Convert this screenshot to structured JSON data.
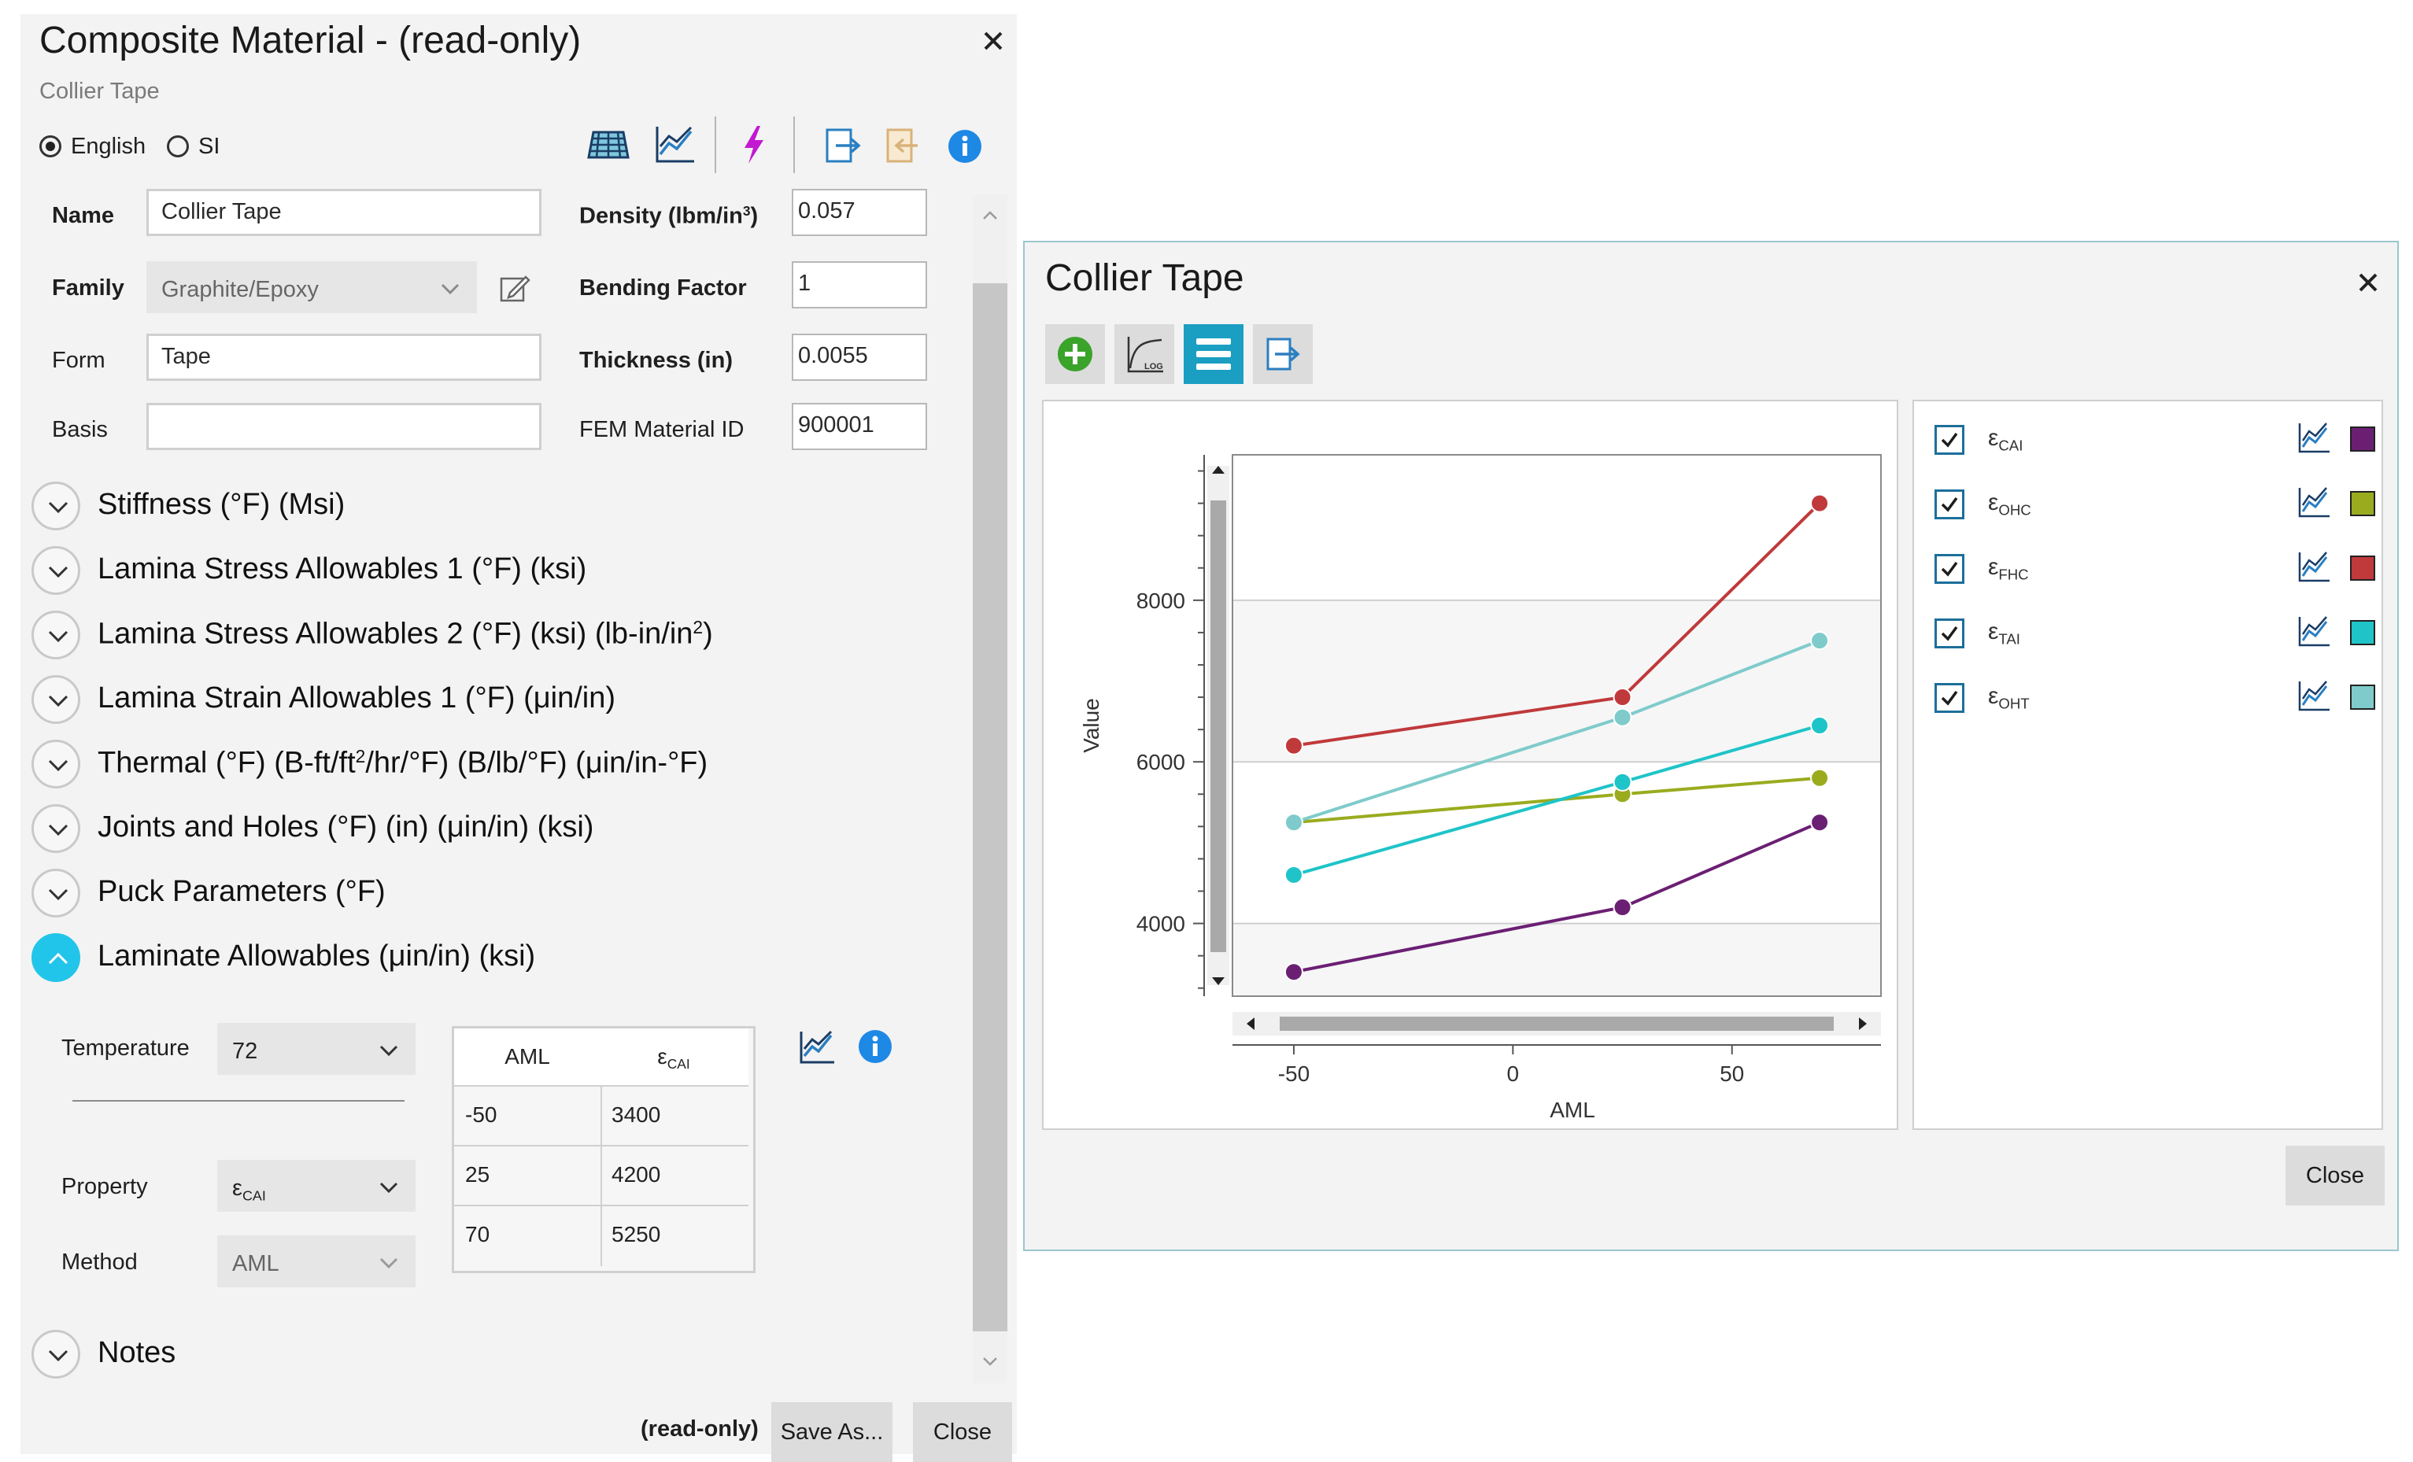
{
  "main_dialog": {
    "title": "Composite Material - (read-only)",
    "subtitle": "Collier Tape",
    "units": {
      "english": "English",
      "si": "SI",
      "selected": "english"
    },
    "fields": {
      "name_label": "Name",
      "name_value": "Collier Tape",
      "family_label": "Family",
      "family_value": "Graphite/Epoxy",
      "form_label": "Form",
      "form_value": "Tape",
      "basis_label": "Basis",
      "basis_value": "",
      "density_label_pre": "Density (lbm/in",
      "density_label_sup": "3",
      "density_label_post": ")",
      "density_value": "0.057",
      "bending_label": "Bending Factor",
      "bending_value": "1",
      "thickness_label": "Thickness (in)",
      "thickness_value": "0.0055",
      "fem_label": "FEM Material ID",
      "fem_value": "900001"
    },
    "sections": [
      {
        "label": "Stiffness (°F) (Msi)"
      },
      {
        "label": "Lamina Stress Allowables 1 (°F) (ksi)"
      },
      {
        "label_pre": "Lamina Stress Allowables 2 (°F) (ksi) (lb-in/in",
        "label_sup": "2",
        "label_post": ")"
      },
      {
        "label": "Lamina Strain Allowables 1 (°F) (μin/in)"
      },
      {
        "label_pre": "Thermal (°F) (B-ft/ft",
        "label_sup": "2",
        "label_post": "/hr/°F) (B/lb/°F) (μin/in-°F)"
      },
      {
        "label": "Joints and Holes (°F) (in) (μin/in) (ksi)"
      },
      {
        "label": "Puck Parameters (°F)"
      },
      {
        "label": "Laminate Allowables (μin/in) (ksi)"
      }
    ],
    "laminate": {
      "temperature_label": "Temperature",
      "temperature_value": "72",
      "property_label": "Property",
      "property_value_main": "ε",
      "property_value_sub": "CAI",
      "method_label": "Method",
      "method_value": "AML",
      "table": {
        "col1": "AML",
        "col2_main": "ε",
        "col2_sub": "CAI",
        "rows": [
          [
            "-50",
            "3400"
          ],
          [
            "25",
            "4200"
          ],
          [
            "70",
            "5250"
          ]
        ]
      }
    },
    "notes_label": "Notes",
    "footer": {
      "status": "(read-only)",
      "save_as": "Save As...",
      "close": "Close"
    }
  },
  "chart_window": {
    "title": "Collier Tape",
    "close_button": "Close",
    "legend": [
      {
        "main": "ε",
        "sub": "CAI",
        "color": "#6b1f73",
        "checked": true
      },
      {
        "main": "ε",
        "sub": "OHC",
        "color": "#9aab1e",
        "checked": true
      },
      {
        "main": "ε",
        "sub": "FHC",
        "color": "#c0393b",
        "checked": true
      },
      {
        "main": "ε",
        "sub": "TAI",
        "color": "#1ec4c8",
        "checked": true
      },
      {
        "main": "ε",
        "sub": "OHT",
        "color": "#7fcbcb",
        "checked": true
      }
    ]
  },
  "chart_data": {
    "type": "line",
    "xlabel": "AML",
    "ylabel": "Value",
    "x_ticks": [
      -50,
      0,
      50
    ],
    "y_ticks": [
      4000,
      6000,
      8000
    ],
    "xlim": [
      -64,
      84
    ],
    "ylim": [
      3100,
      9800
    ],
    "x": [
      -50,
      25,
      70
    ],
    "series": [
      {
        "name": "εCAI",
        "color": "#6b1f73",
        "values": [
          3400,
          4200,
          5250
        ]
      },
      {
        "name": "εOHC",
        "color": "#9aab1e",
        "values": [
          5250,
          5600,
          5800
        ]
      },
      {
        "name": "εFHC",
        "color": "#c0393b",
        "values": [
          6200,
          6800,
          9200
        ]
      },
      {
        "name": "εTAI",
        "color": "#1ec4c8",
        "values": [
          4600,
          5750,
          6450
        ]
      },
      {
        "name": "εOHT",
        "color": "#7fcbcb",
        "values": [
          5250,
          6550,
          7500
        ]
      }
    ],
    "grid": true
  }
}
